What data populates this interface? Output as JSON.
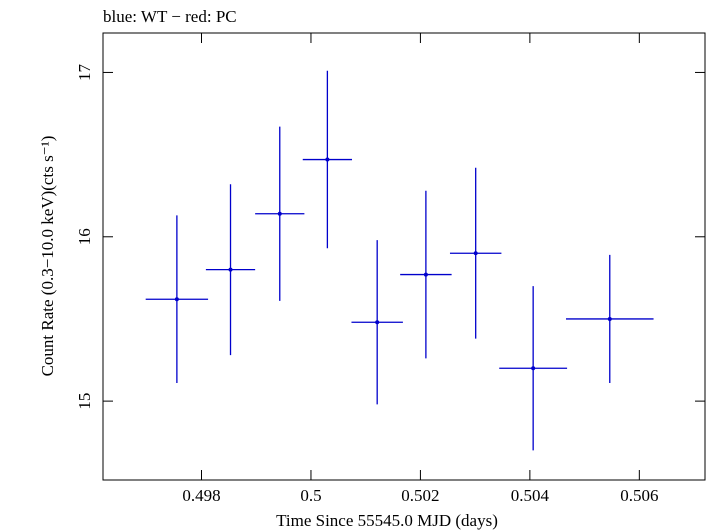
{
  "chart_data": {
    "type": "scatter",
    "title": "blue: WT − red: PC",
    "xlabel": "Time Since 55545.0 MJD (days)",
    "ylabel": "Count Rate (0.3−10.0 keV)(cts s⁻¹)",
    "xlim": [
      0.4962,
      0.5072
    ],
    "ylim": [
      14.52,
      17.24
    ],
    "xticks": [
      {
        "value": 0.498,
        "label": "0.498"
      },
      {
        "value": 0.5,
        "label": "0.5"
      },
      {
        "value": 0.502,
        "label": "0.502"
      },
      {
        "value": 0.504,
        "label": "0.504"
      },
      {
        "value": 0.506,
        "label": "0.506"
      }
    ],
    "yticks": [
      {
        "value": 15,
        "label": "15"
      },
      {
        "value": 16,
        "label": "16"
      },
      {
        "value": 17,
        "label": "17"
      }
    ],
    "grid": false,
    "legend": "none",
    "series": [
      {
        "color": "#0000cc",
        "points": [
          {
            "x": 0.49755,
            "xerr": 0.00057,
            "y": 15.62,
            "yerr": 0.51
          },
          {
            "x": 0.49853,
            "xerr": 0.00045,
            "y": 15.8,
            "yerr": 0.52
          },
          {
            "x": 0.49943,
            "xerr": 0.00045,
            "y": 16.14,
            "yerr": 0.53
          },
          {
            "x": 0.5003,
            "xerr": 0.00045,
            "y": 16.47,
            "yerr": 0.54
          },
          {
            "x": 0.50121,
            "xerr": 0.00047,
            "y": 15.48,
            "yerr": 0.5
          },
          {
            "x": 0.5021,
            "xerr": 0.00047,
            "y": 15.77,
            "yerr": 0.51
          },
          {
            "x": 0.50301,
            "xerr": 0.00047,
            "y": 15.9,
            "yerr": 0.52
          },
          {
            "x": 0.50406,
            "xerr": 0.00062,
            "y": 15.2,
            "yerr": 0.5
          },
          {
            "x": 0.50546,
            "xerr": 0.0008,
            "y": 15.5,
            "yerr": 0.39
          }
        ]
      }
    ]
  }
}
